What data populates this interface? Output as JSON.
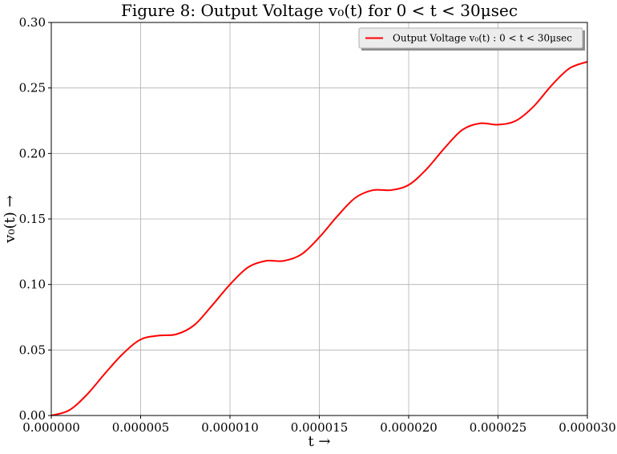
{
  "chart_data": {
    "type": "line",
    "title": "Figure 8: Output Voltage v₀(t) for 0 < t < 30μsec",
    "xlabel": "t →",
    "ylabel": "v₀(t) →",
    "xlim": [
      0,
      3e-05
    ],
    "ylim": [
      0,
      0.3
    ],
    "grid": true,
    "legend_position": "top-right",
    "x_ticks": [
      "0.000000",
      "0.000005",
      "0.000010",
      "0.000015",
      "0.000020",
      "0.000025",
      "0.000030"
    ],
    "y_ticks": [
      "0.00",
      "0.05",
      "0.10",
      "0.15",
      "0.20",
      "0.25",
      "0.30"
    ],
    "series": [
      {
        "name": "Output Voltage v₀(t) : 0 < t < 30μsec",
        "color": "#ff0000",
        "x": [
          0,
          1e-06,
          2e-06,
          3e-06,
          4e-06,
          5e-06,
          6e-06,
          7e-06,
          8e-06,
          9e-06,
          1e-05,
          1.1e-05,
          1.2e-05,
          1.3e-05,
          1.4e-05,
          1.5e-05,
          1.6e-05,
          1.7e-05,
          1.8e-05,
          1.9e-05,
          2e-05,
          2.1e-05,
          2.2e-05,
          2.3e-05,
          2.4e-05,
          2.5e-05,
          2.6e-05,
          2.7e-05,
          2.8e-05,
          2.9e-05,
          3e-05
        ],
        "y": [
          0.0,
          0.004,
          0.016,
          0.032,
          0.047,
          0.058,
          0.061,
          0.062,
          0.069,
          0.084,
          0.1,
          0.113,
          0.118,
          0.118,
          0.123,
          0.136,
          0.152,
          0.166,
          0.172,
          0.172,
          0.176,
          0.188,
          0.204,
          0.218,
          0.223,
          0.222,
          0.225,
          0.236,
          0.252,
          0.265,
          0.27
        ]
      }
    ]
  }
}
